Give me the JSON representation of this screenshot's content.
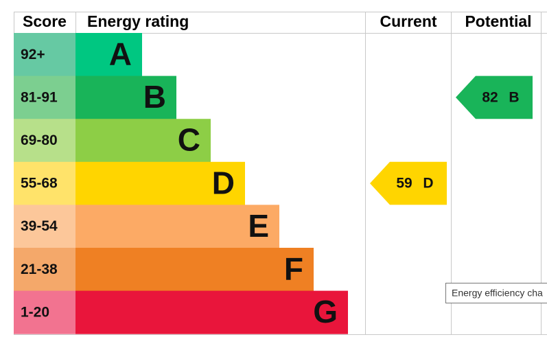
{
  "header": {
    "score": "Score",
    "rating": "Energy rating",
    "current": "Current",
    "potential": "Potential"
  },
  "rows": [
    {
      "score": "92+",
      "letter": "A"
    },
    {
      "score": "81-91",
      "letter": "B"
    },
    {
      "score": "69-80",
      "letter": "C"
    },
    {
      "score": "55-68",
      "letter": "D"
    },
    {
      "score": "39-54",
      "letter": "E"
    },
    {
      "score": "21-38",
      "letter": "F"
    },
    {
      "score": "1-20",
      "letter": "G"
    }
  ],
  "current": {
    "score": 59,
    "rating": "D"
  },
  "potential": {
    "score": 82,
    "rating": "B"
  },
  "tooltip": "Energy efficiency cha"
}
